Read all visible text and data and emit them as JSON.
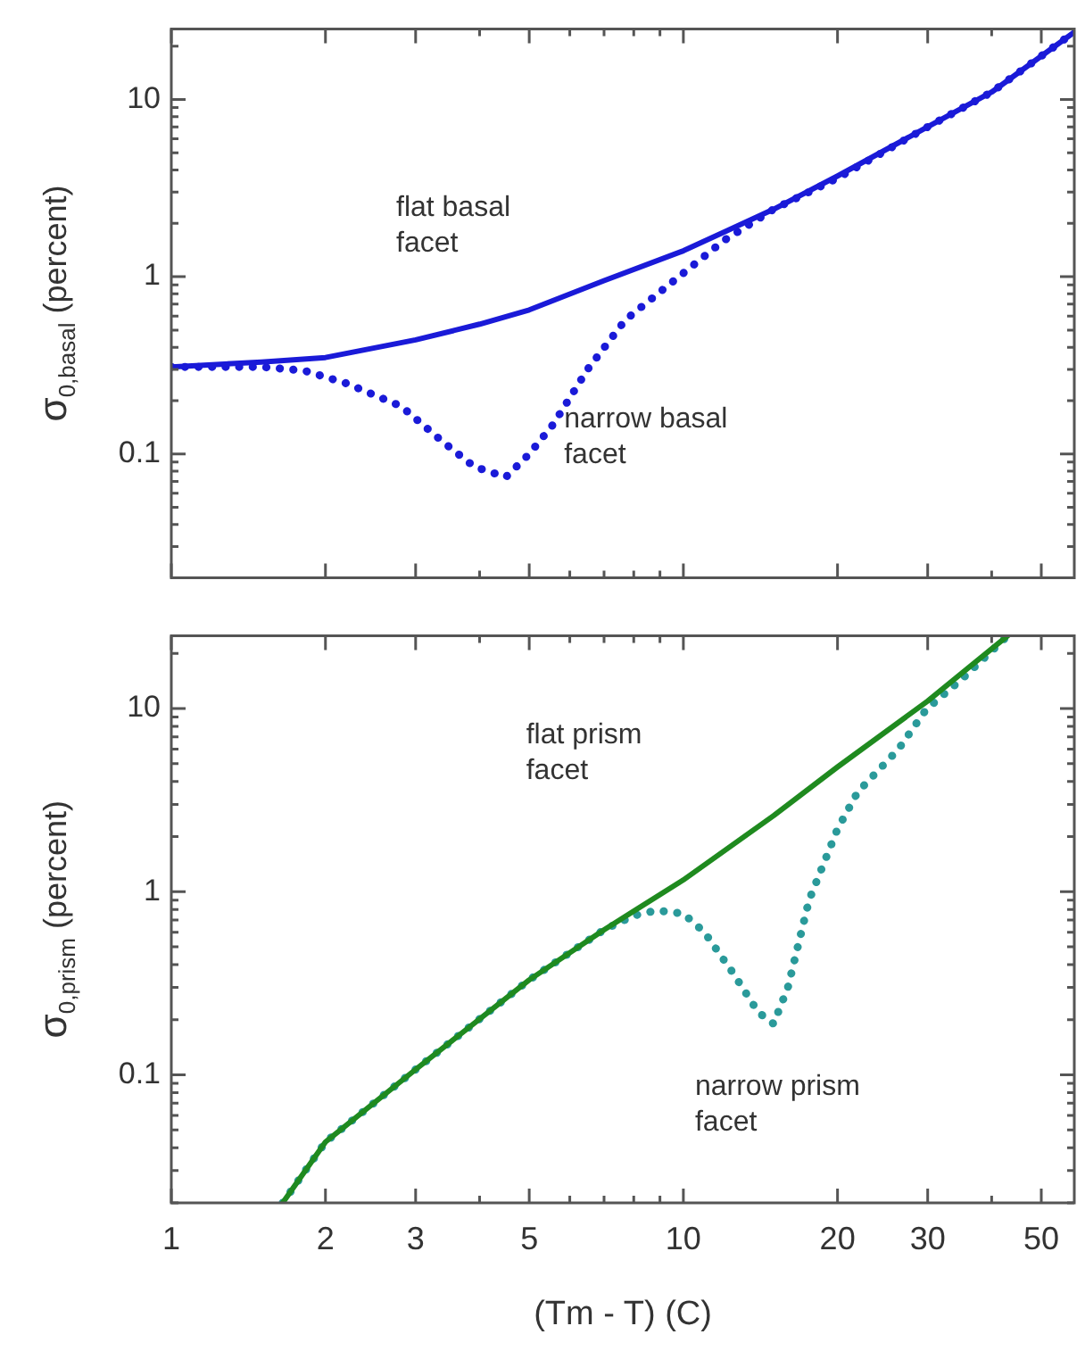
{
  "chart_data": [
    {
      "type": "line",
      "ylabel": "σ$_{0,basal}$ (percent)",
      "log": "xy",
      "grid": false,
      "legend": false,
      "tick_labels": "y",
      "marker": "none",
      "xlim": [
        1,
        58
      ],
      "xticks": [
        1,
        2,
        3,
        {
          "value": 4,
          "label": null
        },
        5,
        {
          "value": 6,
          "label": null
        },
        {
          "value": 7,
          "label": null
        },
        {
          "value": 8,
          "label": null
        },
        {
          "value": 9,
          "label": null
        },
        10,
        20,
        30,
        {
          "value": 40,
          "label": null
        },
        50
      ],
      "ylim": [
        0.02,
        25
      ],
      "yticks": [
        {
          "value": 0.02,
          "label": null
        },
        {
          "value": 0.03,
          "label": null
        },
        {
          "value": 0.04,
          "label": null
        },
        {
          "value": 0.05,
          "label": null
        },
        {
          "value": 0.06,
          "label": null
        },
        {
          "value": 0.07,
          "label": null
        },
        {
          "value": 0.08,
          "label": null
        },
        {
          "value": 0.09,
          "label": null
        },
        0.1,
        {
          "value": 0.2,
          "label": null
        },
        {
          "value": 0.3,
          "label": null
        },
        {
          "value": 0.4,
          "label": null
        },
        {
          "value": 0.5,
          "label": null
        },
        {
          "value": 0.6,
          "label": null
        },
        {
          "value": 0.7,
          "label": null
        },
        {
          "value": 0.8,
          "label": null
        },
        {
          "value": 0.9,
          "label": null
        },
        1,
        {
          "value": 2,
          "label": null
        },
        {
          "value": 3,
          "label": null
        },
        {
          "value": 4,
          "label": null
        },
        {
          "value": 5,
          "label": null
        },
        {
          "value": 6,
          "label": null
        },
        {
          "value": 7,
          "label": null
        },
        {
          "value": 8,
          "label": null
        },
        {
          "value": 9,
          "label": null
        },
        10,
        {
          "value": 20,
          "label": null
        }
      ],
      "series": [
        {
          "color": "#1a1ad8",
          "line_style": "solid",
          "x": [
            1,
            1.5,
            2,
            3,
            4,
            5,
            7,
            10,
            15,
            20,
            30,
            40,
            58
          ],
          "values": [
            0.31,
            0.33,
            0.35,
            0.44,
            0.54,
            0.65,
            0.95,
            1.4,
            2.4,
            3.7,
            7,
            11,
            24
          ]
        },
        {
          "color": "#1a1ad8",
          "line_style": "dotted",
          "x": [
            1,
            1.5,
            1.82,
            2.2,
            2.81,
            3.38,
            3.9,
            4.5,
            5,
            5.57,
            6.5,
            7.7,
            9.8,
            12,
            15,
            20,
            30,
            40,
            58
          ],
          "values": [
            0.31,
            0.31,
            0.295,
            0.25,
            0.186,
            0.118,
            0.085,
            0.074,
            0.1,
            0.147,
            0.3,
            0.57,
            1.0,
            1.6,
            2.4,
            3.6,
            7,
            11,
            24
          ]
        }
      ],
      "annotations": [
        "flat basal facet",
        "narrow basal facet"
      ]
    },
    {
      "type": "line",
      "ylabel": "σ$_{0,prism}$ (percent)",
      "xlabel": "(Tm - T) (C)",
      "log": "xy",
      "grid": false,
      "legend": false,
      "marker": "none",
      "xlim": [
        1,
        58
      ],
      "xticks": [
        1,
        2,
        3,
        {
          "value": 4,
          "label": null
        },
        5,
        {
          "value": 6,
          "label": null
        },
        {
          "value": 7,
          "label": null
        },
        {
          "value": 8,
          "label": null
        },
        {
          "value": 9,
          "label": null
        },
        10,
        20,
        30,
        {
          "value": 40,
          "label": null
        },
        50
      ],
      "ylim": [
        0.02,
        25
      ],
      "yticks": [
        {
          "value": 0.02,
          "label": null
        },
        {
          "value": 0.03,
          "label": null
        },
        {
          "value": 0.04,
          "label": null
        },
        {
          "value": 0.05,
          "label": null
        },
        {
          "value": 0.06,
          "label": null
        },
        {
          "value": 0.07,
          "label": null
        },
        {
          "value": 0.08,
          "label": null
        },
        {
          "value": 0.09,
          "label": null
        },
        0.1,
        {
          "value": 0.2,
          "label": null
        },
        {
          "value": 0.3,
          "label": null
        },
        {
          "value": 0.4,
          "label": null
        },
        {
          "value": 0.5,
          "label": null
        },
        {
          "value": 0.6,
          "label": null
        },
        {
          "value": 0.7,
          "label": null
        },
        {
          "value": 0.8,
          "label": null
        },
        {
          "value": 0.9,
          "label": null
        },
        1,
        {
          "value": 2,
          "label": null
        },
        {
          "value": 3,
          "label": null
        },
        {
          "value": 4,
          "label": null
        },
        {
          "value": 5,
          "label": null
        },
        {
          "value": 6,
          "label": null
        },
        {
          "value": 7,
          "label": null
        },
        {
          "value": 8,
          "label": null
        },
        {
          "value": 9,
          "label": null
        },
        10,
        {
          "value": 20,
          "label": null
        }
      ],
      "series": [
        {
          "color": "#1f8a1f",
          "line_style": "solid",
          "x": [
            1.65,
            2,
            3,
            5,
            7,
            10,
            15,
            20,
            30,
            43
          ],
          "values": [
            0.02,
            0.043,
            0.107,
            0.33,
            0.62,
            1.16,
            2.6,
            4.8,
            11,
            25
          ]
        },
        {
          "color": "#2a9a9a",
          "line_style": "dotted",
          "x": [
            1.65,
            2,
            3,
            5,
            7,
            8,
            8.85,
            10,
            11,
            12.5,
            14,
            15,
            16,
            17.6,
            20,
            21.9,
            26.3,
            29.8,
            35,
            43
          ],
          "values": [
            0.02,
            0.043,
            0.107,
            0.33,
            0.62,
            0.74,
            0.79,
            0.76,
            0.6,
            0.36,
            0.22,
            0.19,
            0.3,
            0.9,
            2.2,
            3.5,
            6,
            9.9,
            14.5,
            25
          ]
        }
      ],
      "annotations": [
        "flat prism facet",
        "narrow prism facet"
      ]
    }
  ]
}
